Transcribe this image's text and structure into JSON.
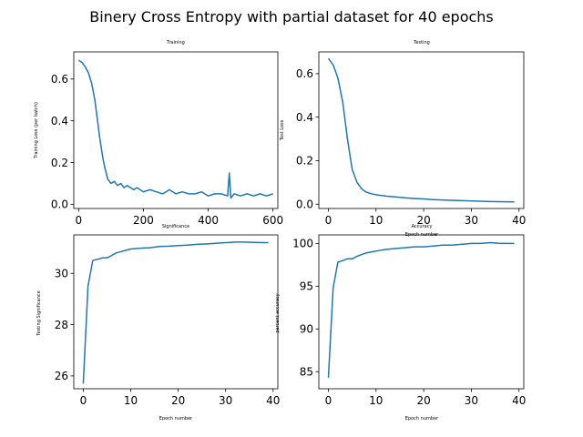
{
  "suptitle": "Binery Cross Entropy with partial dataset for 40 epochs",
  "chart_data": [
    {
      "type": "line",
      "title": "Training",
      "xlabel": "",
      "ylabel": "Training Loss (per batch)",
      "xlim": [
        -15,
        615
      ],
      "ylim": [
        -0.02,
        0.73
      ],
      "xticks": [
        0,
        200,
        400,
        600
      ],
      "yticks": [
        0.0,
        0.2,
        0.4,
        0.6
      ],
      "ytick_labels": [
        "0.0",
        "0.2",
        "0.4",
        "0.6"
      ],
      "color": "#1f77b4",
      "series": [
        {
          "x": [
            0,
            10,
            20,
            30,
            40,
            50,
            55,
            60,
            65,
            70,
            75,
            80,
            85,
            90,
            95,
            100,
            110,
            120,
            130,
            140,
            150,
            160,
            170,
            180,
            190,
            200,
            220,
            240,
            260,
            280,
            300,
            320,
            340,
            360,
            380,
            400,
            420,
            440,
            460,
            465,
            470,
            480,
            500,
            520,
            540,
            560,
            580,
            600
          ],
          "y": [
            0.69,
            0.68,
            0.66,
            0.63,
            0.58,
            0.5,
            0.44,
            0.38,
            0.32,
            0.27,
            0.22,
            0.18,
            0.15,
            0.12,
            0.11,
            0.1,
            0.11,
            0.09,
            0.1,
            0.08,
            0.09,
            0.08,
            0.07,
            0.08,
            0.07,
            0.06,
            0.07,
            0.06,
            0.05,
            0.07,
            0.05,
            0.06,
            0.05,
            0.05,
            0.06,
            0.04,
            0.05,
            0.05,
            0.04,
            0.15,
            0.03,
            0.05,
            0.04,
            0.05,
            0.04,
            0.05,
            0.04,
            0.05
          ]
        }
      ]
    },
    {
      "type": "line",
      "title": "Testing",
      "xlabel": "Epoch number",
      "ylabel": "Test Loss",
      "xlim": [
        -2,
        41
      ],
      "ylim": [
        -0.02,
        0.7
      ],
      "xticks": [
        0,
        10,
        20,
        30,
        40
      ],
      "yticks": [
        0.0,
        0.2,
        0.4,
        0.6
      ],
      "ytick_labels": [
        "0.0",
        "0.2",
        "0.4",
        "0.6"
      ],
      "color": "#1f77b4",
      "series": [
        {
          "x": [
            0,
            1,
            2,
            3,
            4,
            5,
            6,
            7,
            8,
            9,
            10,
            12,
            14,
            16,
            18,
            20,
            22,
            25,
            28,
            31,
            34,
            37,
            39
          ],
          "y": [
            0.67,
            0.64,
            0.58,
            0.47,
            0.3,
            0.16,
            0.1,
            0.07,
            0.055,
            0.048,
            0.043,
            0.037,
            0.033,
            0.029,
            0.026,
            0.024,
            0.021,
            0.018,
            0.016,
            0.014,
            0.012,
            0.011,
            0.01
          ]
        }
      ]
    },
    {
      "type": "line",
      "title": "Significance",
      "xlabel": "Epoch number",
      "ylabel": "Testing Significance",
      "xlim": [
        -2,
        41
      ],
      "ylim": [
        25.5,
        31.5
      ],
      "xticks": [
        0,
        10,
        20,
        30,
        40
      ],
      "yticks": [
        26,
        28,
        30
      ],
      "ytick_labels": [
        "26",
        "28",
        "30"
      ],
      "color": "#1f77b4",
      "series": [
        {
          "x": [
            0,
            1,
            2,
            3,
            4,
            5,
            6,
            7,
            8,
            9,
            10,
            12,
            14,
            16,
            18,
            20,
            22,
            24,
            26,
            28,
            30,
            32,
            34,
            36,
            38,
            39
          ],
          "y": [
            25.7,
            29.5,
            30.5,
            30.55,
            30.6,
            30.6,
            30.7,
            30.8,
            30.85,
            30.9,
            30.95,
            30.98,
            31.0,
            31.05,
            31.06,
            31.08,
            31.1,
            31.13,
            31.15,
            31.17,
            31.2,
            31.22,
            31.22,
            31.21,
            31.2,
            31.2
          ]
        }
      ]
    },
    {
      "type": "line",
      "title": "Accuracy",
      "xlabel": "Epoch number",
      "ylabel": "percent accuracy",
      "xlim": [
        -2,
        41
      ],
      "ylim": [
        83,
        101
      ],
      "xticks": [
        0,
        10,
        20,
        30,
        40
      ],
      "yticks": [
        85,
        90,
        95,
        100
      ],
      "ytick_labels": [
        "85",
        "90",
        "95",
        "100"
      ],
      "color": "#1f77b4",
      "series": [
        {
          "x": [
            0,
            1,
            2,
            3,
            4,
            5,
            6,
            7,
            8,
            9,
            10,
            12,
            14,
            16,
            18,
            20,
            22,
            24,
            26,
            28,
            30,
            32,
            34,
            36,
            38,
            39
          ],
          "y": [
            84.3,
            94.8,
            97.8,
            98.0,
            98.2,
            98.2,
            98.5,
            98.7,
            98.9,
            99.0,
            99.1,
            99.3,
            99.4,
            99.5,
            99.6,
            99.6,
            99.7,
            99.8,
            99.8,
            99.9,
            100.0,
            100.0,
            100.1,
            100.0,
            100.0,
            100.0
          ]
        }
      ]
    }
  ]
}
